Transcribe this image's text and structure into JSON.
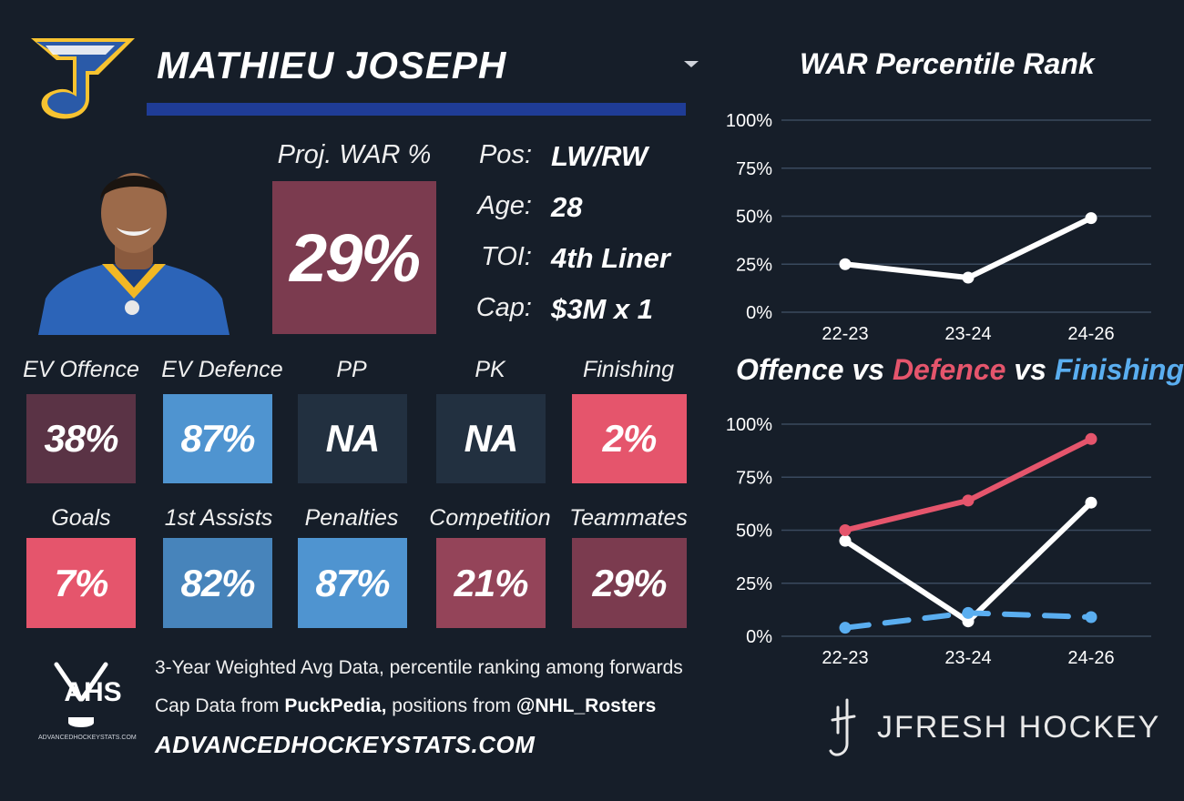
{
  "player": {
    "name": "MATHIEU JOSEPH",
    "proj_war_label": "Proj. WAR %",
    "proj_war_value": "29%",
    "info": [
      {
        "label": "Pos:",
        "value": "LW/RW"
      },
      {
        "label": "Age:",
        "value": "28"
      },
      {
        "label": "TOI:",
        "value": "4th Liner"
      },
      {
        "label": "Cap:",
        "value": "$3M x 1"
      }
    ]
  },
  "metrics_row1": [
    {
      "label": "EV Offence",
      "value": "38%",
      "color": "#5a3345"
    },
    {
      "label": "EV Defence",
      "value": "87%",
      "color": "#4f94d0"
    },
    {
      "label": "PP",
      "value": "NA",
      "color": "#223040"
    },
    {
      "label": "PK",
      "value": "NA",
      "color": "#223040"
    },
    {
      "label": "Finishing",
      "value": "2%",
      "color": "#e5556c"
    }
  ],
  "metrics_row2": [
    {
      "label": "Goals",
      "value": "7%",
      "color": "#e5556c"
    },
    {
      "label": "1st Assists",
      "value": "82%",
      "color": "#4784bb"
    },
    {
      "label": "Penalties",
      "value": "87%",
      "color": "#4f94d0"
    },
    {
      "label": "Competition",
      "value": "21%",
      "color": "#944459"
    },
    {
      "label": "Teammates",
      "value": "29%",
      "color": "#7b3b4f"
    }
  ],
  "footer": {
    "line1": "3-Year Weighted Avg Data, percentile ranking among forwards",
    "line2_prefix": "Cap Data from ",
    "line2_source1": "PuckPedia,",
    "line2_mid": " positions from ",
    "line2_source2": "@NHL_Rosters",
    "site": "ADVANCEDHOCKEYSTATS.COM",
    "ahs_logo_text": "AHS",
    "ahs_logo_sub": "ADVANCEDHOCKEYSTATS.COM",
    "brand": "JFRESH HOCKEY"
  },
  "chart_data": [
    {
      "type": "line",
      "title": "WAR Percentile Rank",
      "categories": [
        "22-23",
        "23-24",
        "24-26"
      ],
      "y_ticks": [
        "0%",
        "25%",
        "50%",
        "75%",
        "100%"
      ],
      "ylim": [
        0,
        100
      ],
      "series": [
        {
          "values": [
            25,
            18,
            49
          ],
          "color": "#ffffff",
          "style": "solid"
        }
      ]
    },
    {
      "type": "line",
      "title_parts": [
        {
          "text": "Offence",
          "color": "#ffffff"
        },
        {
          "text": " vs ",
          "color": "#ffffff"
        },
        {
          "text": "Defence",
          "color": "#e5556c"
        },
        {
          "text": " vs ",
          "color": "#ffffff"
        },
        {
          "text": "Finishing",
          "color": "#5aaef0"
        }
      ],
      "categories": [
        "22-23",
        "23-24",
        "24-26"
      ],
      "y_ticks": [
        "0%",
        "25%",
        "50%",
        "75%",
        "100%"
      ],
      "ylim": [
        0,
        100
      ],
      "series": [
        {
          "values": [
            45,
            7,
            63
          ],
          "color": "#ffffff",
          "style": "solid"
        },
        {
          "values": [
            50,
            64,
            93
          ],
          "color": "#e5556c",
          "style": "solid"
        },
        {
          "values": [
            4,
            11,
            9
          ],
          "color": "#5aaef0",
          "style": "dashed"
        }
      ]
    }
  ]
}
